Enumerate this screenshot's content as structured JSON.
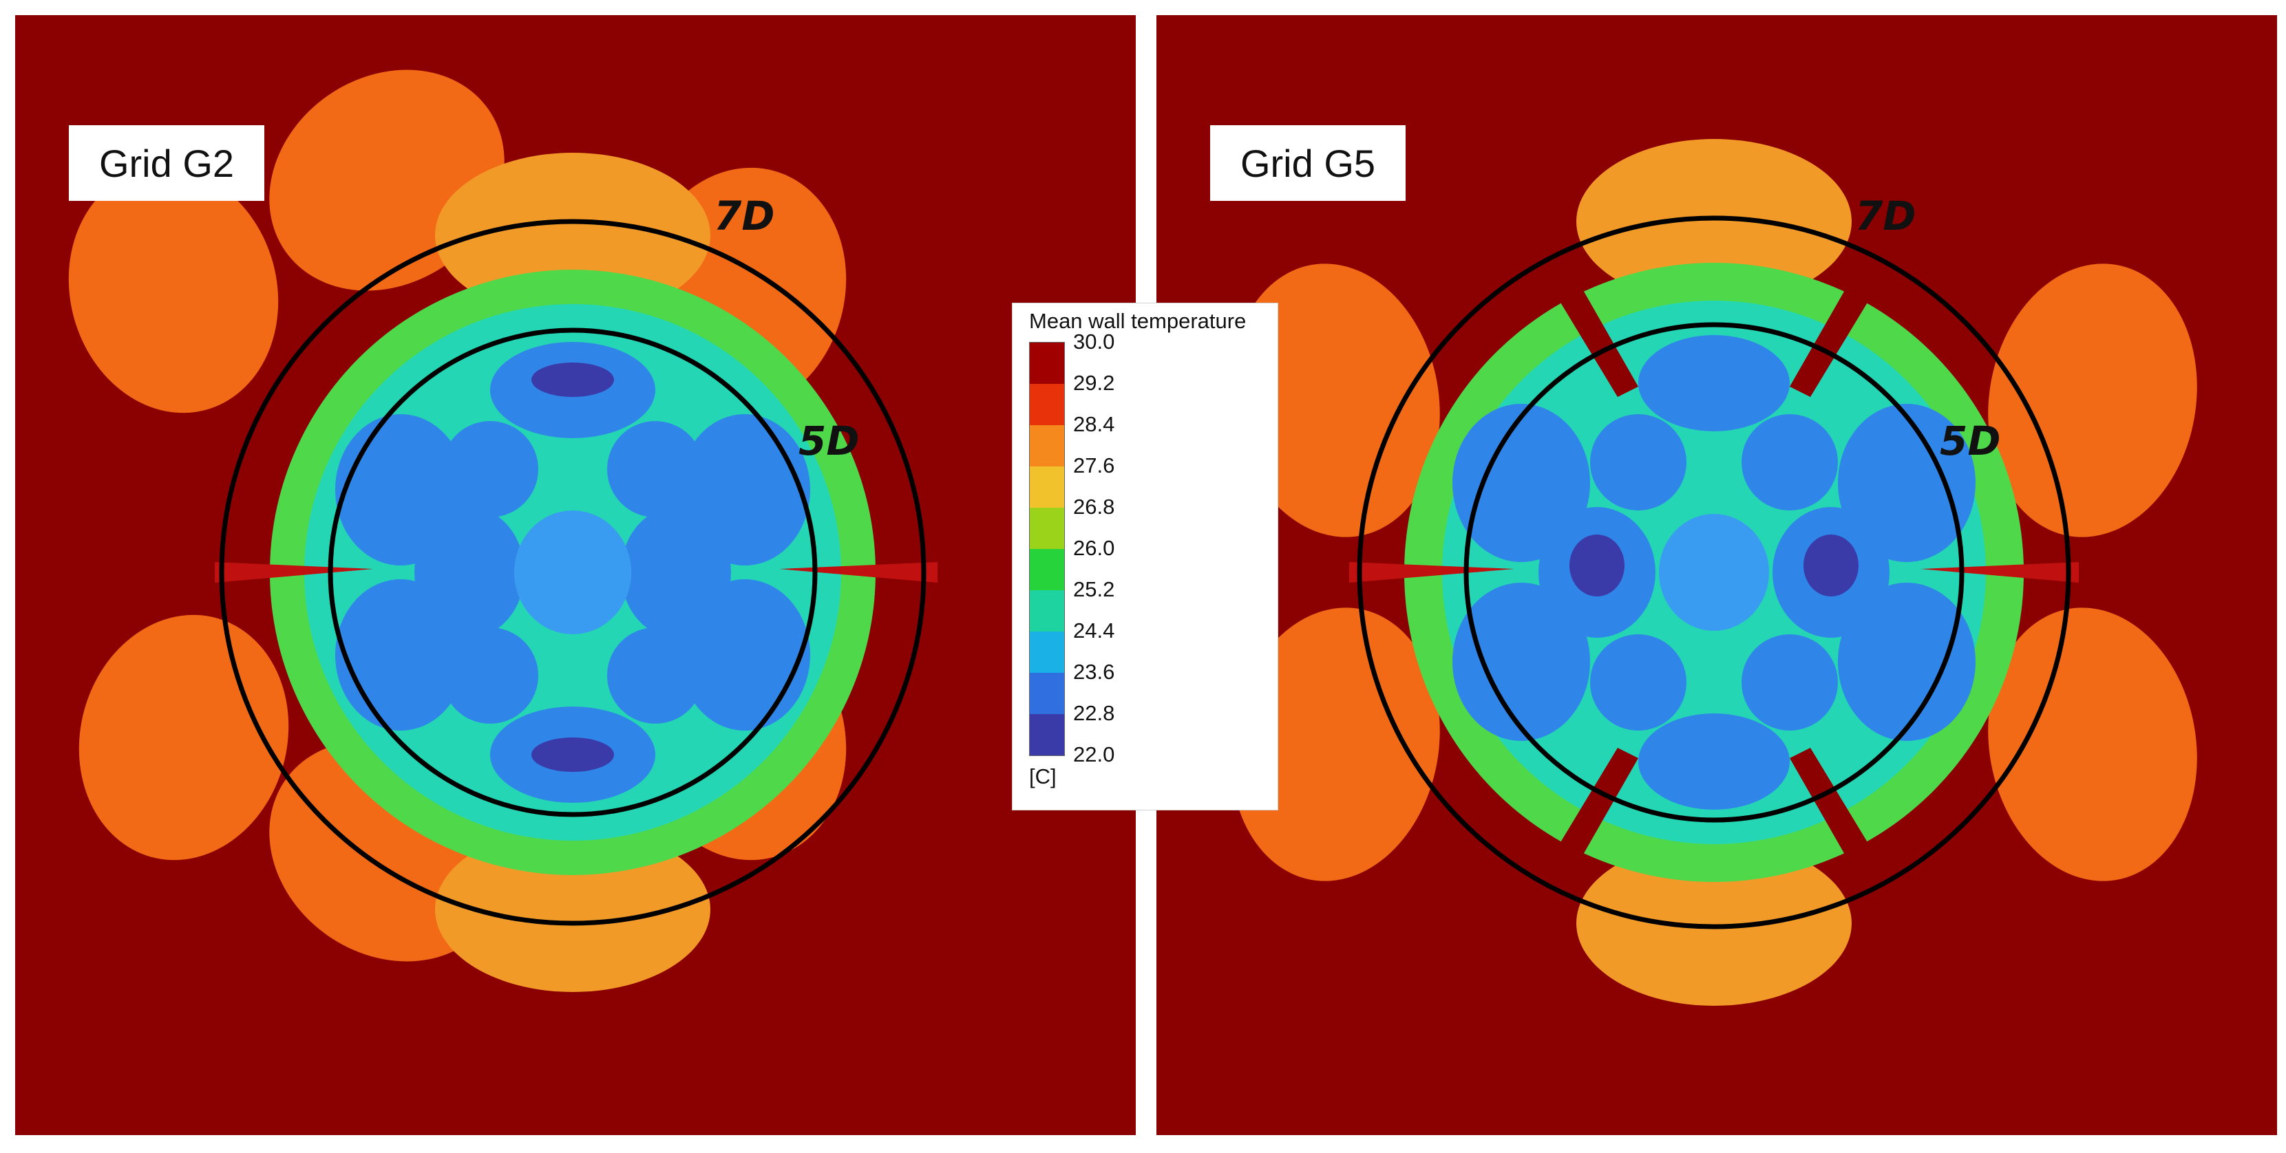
{
  "figure": {
    "panels": [
      {
        "label": "Grid G2",
        "outer_ring_label": "7D",
        "inner_ring_label": "5D"
      },
      {
        "label": "Grid G5",
        "outer_ring_label": "7D",
        "inner_ring_label": "5D"
      }
    ]
  },
  "legend": {
    "title": "Mean wall temperature",
    "unit": "[C]",
    "ticks": [
      "30.0",
      "29.2",
      "28.4",
      "27.6",
      "26.8",
      "26.0",
      "25.2",
      "24.4",
      "23.6",
      "22.8",
      "22.0"
    ],
    "colors": [
      "#a00000",
      "#e8320a",
      "#f5891e",
      "#f2c22c",
      "#9bd21a",
      "#27d33a",
      "#1fd3a0",
      "#1ab1e6",
      "#2f6fe0",
      "#3a3aa8"
    ]
  },
  "colors": {
    "background_hot": "#8b0000",
    "ring_stroke": "#000000"
  }
}
